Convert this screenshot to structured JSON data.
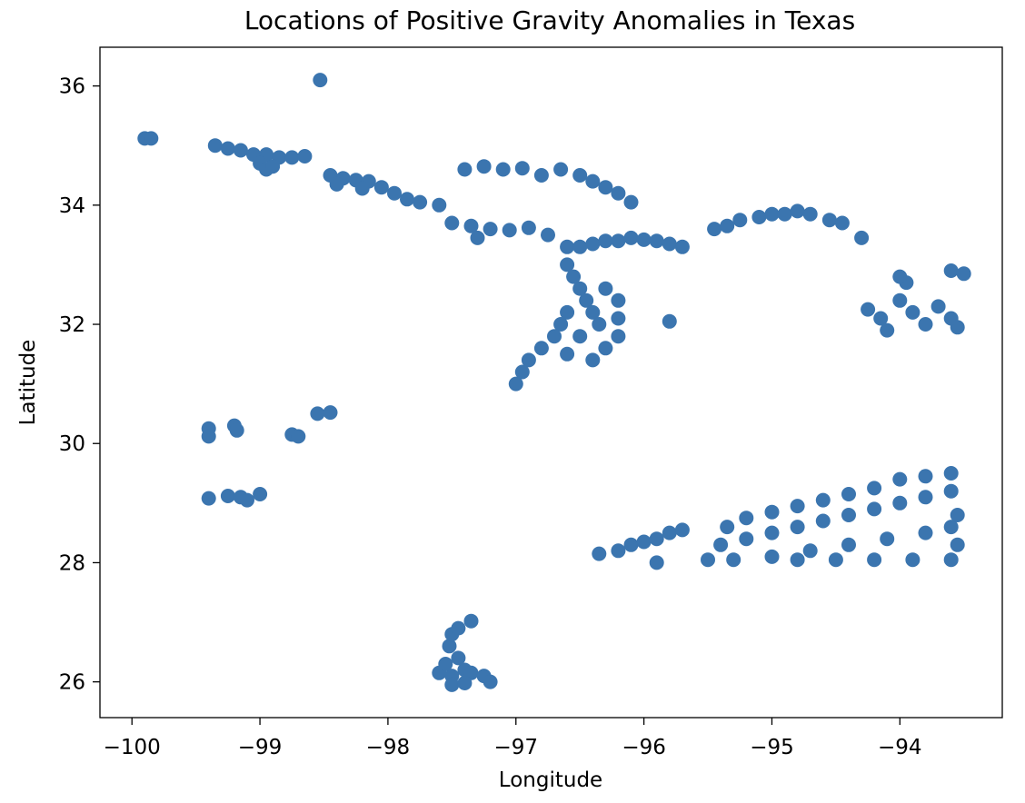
{
  "chart_data": {
    "type": "scatter",
    "title": "Locations of Positive Gravity Anomalies in Texas",
    "xlabel": "Longitude",
    "ylabel": "Latitude",
    "xlim": [
      -100.25,
      -93.2
    ],
    "ylim": [
      25.4,
      36.65
    ],
    "xticks": [
      -100,
      -99,
      -98,
      -97,
      -96,
      -95,
      -94
    ],
    "xtick_labels": [
      "−100",
      "−99",
      "−98",
      "−97",
      "−96",
      "−95",
      "−94"
    ],
    "yticks": [
      26,
      28,
      30,
      32,
      34,
      36
    ],
    "ytick_labels": [
      "26",
      "28",
      "30",
      "32",
      "34",
      "36"
    ],
    "grid": false,
    "legend": false,
    "marker_color": "#3b75af",
    "series": [
      {
        "points": [
          [
            -99.9,
            35.12
          ],
          [
            -99.85,
            35.12
          ],
          [
            -98.53,
            36.1
          ],
          [
            -99.35,
            35.0
          ],
          [
            -99.25,
            34.95
          ],
          [
            -99.15,
            34.92
          ],
          [
            -99.05,
            34.85
          ],
          [
            -98.95,
            34.85
          ],
          [
            -98.85,
            34.8
          ],
          [
            -98.75,
            34.8
          ],
          [
            -98.65,
            34.82
          ],
          [
            -99.0,
            34.7
          ],
          [
            -98.95,
            34.6
          ],
          [
            -98.9,
            34.65
          ],
          [
            -98.45,
            34.5
          ],
          [
            -98.35,
            34.45
          ],
          [
            -98.25,
            34.42
          ],
          [
            -98.15,
            34.4
          ],
          [
            -98.05,
            34.3
          ],
          [
            -97.95,
            34.2
          ],
          [
            -97.85,
            34.1
          ],
          [
            -97.75,
            34.05
          ],
          [
            -97.6,
            34.0
          ],
          [
            -98.4,
            34.35
          ],
          [
            -98.2,
            34.28
          ],
          [
            -97.5,
            33.7
          ],
          [
            -97.35,
            33.65
          ],
          [
            -97.2,
            33.6
          ],
          [
            -97.05,
            33.58
          ],
          [
            -96.9,
            33.62
          ],
          [
            -96.75,
            33.5
          ],
          [
            -96.6,
            33.3
          ],
          [
            -97.3,
            33.45
          ],
          [
            -96.5,
            33.3
          ],
          [
            -96.4,
            33.35
          ],
          [
            -96.3,
            33.4
          ],
          [
            -96.2,
            33.4
          ],
          [
            -96.1,
            33.45
          ],
          [
            -96.0,
            33.42
          ],
          [
            -95.9,
            33.4
          ],
          [
            -95.8,
            33.35
          ],
          [
            -95.7,
            33.3
          ],
          [
            -96.6,
            33.0
          ],
          [
            -96.55,
            32.8
          ],
          [
            -96.5,
            32.6
          ],
          [
            -96.45,
            32.4
          ],
          [
            -96.4,
            32.2
          ],
          [
            -96.35,
            32.0
          ],
          [
            -96.3,
            32.6
          ],
          [
            -96.2,
            32.4
          ],
          [
            -96.2,
            32.1
          ],
          [
            -96.6,
            32.2
          ],
          [
            -96.65,
            32.0
          ],
          [
            -96.7,
            31.8
          ],
          [
            -96.8,
            31.6
          ],
          [
            -96.9,
            31.4
          ],
          [
            -96.95,
            31.2
          ],
          [
            -97.0,
            31.0
          ],
          [
            -96.6,
            31.5
          ],
          [
            -96.4,
            31.4
          ],
          [
            -96.3,
            31.6
          ],
          [
            -96.2,
            31.8
          ],
          [
            -96.5,
            31.8
          ],
          [
            -95.8,
            32.05
          ],
          [
            -97.4,
            34.6
          ],
          [
            -97.25,
            34.65
          ],
          [
            -97.1,
            34.6
          ],
          [
            -96.95,
            34.62
          ],
          [
            -96.8,
            34.5
          ],
          [
            -96.65,
            34.6
          ],
          [
            -96.5,
            34.5
          ],
          [
            -96.4,
            34.4
          ],
          [
            -96.3,
            34.3
          ],
          [
            -96.2,
            34.2
          ],
          [
            -96.1,
            34.05
          ],
          [
            -95.45,
            33.6
          ],
          [
            -95.35,
            33.65
          ],
          [
            -95.25,
            33.75
          ],
          [
            -95.1,
            33.8
          ],
          [
            -95.0,
            33.85
          ],
          [
            -94.9,
            33.85
          ],
          [
            -94.8,
            33.9
          ],
          [
            -94.7,
            33.85
          ],
          [
            -94.55,
            33.75
          ],
          [
            -94.45,
            33.7
          ],
          [
            -94.3,
            33.45
          ],
          [
            -94.25,
            32.25
          ],
          [
            -94.15,
            32.1
          ],
          [
            -94.0,
            32.4
          ],
          [
            -93.95,
            32.7
          ],
          [
            -94.0,
            32.8
          ],
          [
            -93.9,
            32.2
          ],
          [
            -93.8,
            32.0
          ],
          [
            -94.1,
            31.9
          ],
          [
            -93.7,
            32.3
          ],
          [
            -93.6,
            32.1
          ],
          [
            -93.55,
            31.95
          ],
          [
            -93.6,
            32.9
          ],
          [
            -93.5,
            32.85
          ],
          [
            -99.4,
            30.25
          ],
          [
            -99.4,
            30.12
          ],
          [
            -99.2,
            30.3
          ],
          [
            -99.18,
            30.22
          ],
          [
            -98.75,
            30.15
          ],
          [
            -98.7,
            30.12
          ],
          [
            -98.55,
            30.5
          ],
          [
            -98.45,
            30.52
          ],
          [
            -99.4,
            29.08
          ],
          [
            -99.25,
            29.12
          ],
          [
            -99.15,
            29.1
          ],
          [
            -99.1,
            29.05
          ],
          [
            -99.0,
            29.15
          ],
          [
            -96.35,
            28.15
          ],
          [
            -96.2,
            28.2
          ],
          [
            -96.1,
            28.3
          ],
          [
            -96.0,
            28.35
          ],
          [
            -95.9,
            28.4
          ],
          [
            -95.8,
            28.5
          ],
          [
            -95.7,
            28.55
          ],
          [
            -95.9,
            28.0
          ],
          [
            -95.5,
            28.05
          ],
          [
            -95.35,
            28.6
          ],
          [
            -95.2,
            28.75
          ],
          [
            -95.0,
            28.85
          ],
          [
            -94.8,
            28.95
          ],
          [
            -94.6,
            29.05
          ],
          [
            -94.4,
            29.15
          ],
          [
            -94.2,
            29.25
          ],
          [
            -94.0,
            29.4
          ],
          [
            -93.8,
            29.45
          ],
          [
            -93.6,
            29.5
          ],
          [
            -95.4,
            28.3
          ],
          [
            -95.2,
            28.4
          ],
          [
            -95.0,
            28.5
          ],
          [
            -94.8,
            28.6
          ],
          [
            -94.6,
            28.7
          ],
          [
            -94.4,
            28.8
          ],
          [
            -94.2,
            28.9
          ],
          [
            -94.0,
            29.0
          ],
          [
            -93.8,
            29.1
          ],
          [
            -93.6,
            29.2
          ],
          [
            -95.3,
            28.05
          ],
          [
            -95.0,
            28.1
          ],
          [
            -94.7,
            28.2
          ],
          [
            -94.4,
            28.3
          ],
          [
            -94.1,
            28.4
          ],
          [
            -93.8,
            28.5
          ],
          [
            -93.6,
            28.6
          ],
          [
            -94.8,
            28.05
          ],
          [
            -94.5,
            28.05
          ],
          [
            -94.2,
            28.05
          ],
          [
            -93.9,
            28.05
          ],
          [
            -93.6,
            28.05
          ],
          [
            -93.55,
            28.8
          ],
          [
            -93.55,
            28.3
          ],
          [
            -97.6,
            26.15
          ],
          [
            -97.5,
            26.1
          ],
          [
            -97.55,
            26.3
          ],
          [
            -97.52,
            26.6
          ],
          [
            -97.5,
            26.8
          ],
          [
            -97.45,
            26.9
          ],
          [
            -97.35,
            27.02
          ],
          [
            -97.45,
            26.4
          ],
          [
            -97.4,
            26.2
          ],
          [
            -97.35,
            26.15
          ],
          [
            -97.5,
            25.95
          ],
          [
            -97.4,
            25.98
          ],
          [
            -97.25,
            26.1
          ],
          [
            -97.2,
            26.0
          ]
        ]
      }
    ]
  }
}
